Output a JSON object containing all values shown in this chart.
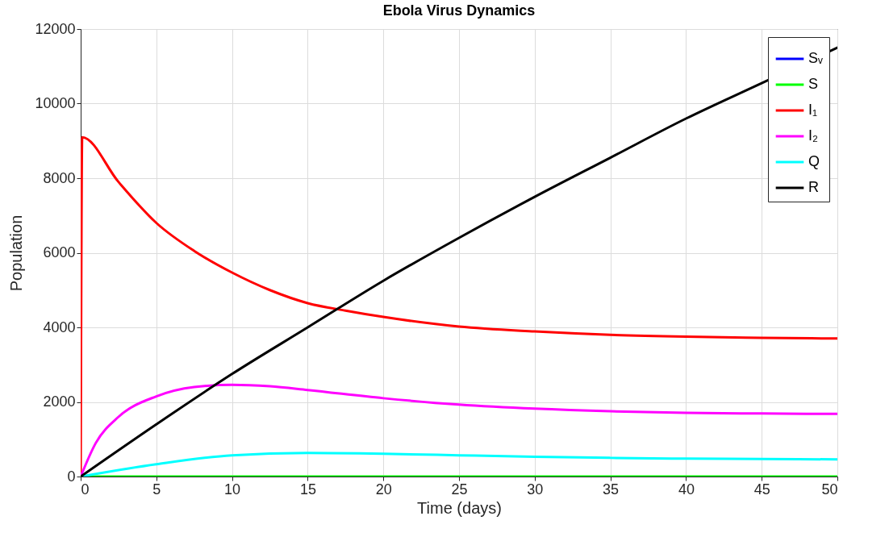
{
  "chart_data": {
    "type": "line",
    "title": "Ebola Virus Dynamics",
    "xlabel": "Time (days)",
    "ylabel": "Population",
    "xlim": [
      0,
      50
    ],
    "xticks": [
      0,
      5,
      10,
      15,
      20,
      25,
      30,
      35,
      40,
      45,
      50
    ],
    "ylim": [
      0,
      12000
    ],
    "yticks": [
      0,
      2000,
      4000,
      6000,
      8000,
      10000,
      12000
    ],
    "grid": true,
    "legend": "top right",
    "line_style": "solid",
    "series": [
      {
        "name": "Sᵥ",
        "color": "#0000ff"
      },
      {
        "name": "S",
        "color": "#00ff00",
        "x": [
          0,
          50
        ],
        "values": [
          0,
          0
        ]
      },
      {
        "name": "I₁",
        "color": "#ff0000",
        "x": [
          0,
          0.1,
          2.5,
          5,
          7.5,
          10,
          12.5,
          15,
          17.5,
          20,
          25,
          30,
          35,
          40,
          45,
          50
        ],
        "values": [
          0,
          9100,
          7900,
          6800,
          6050,
          5470,
          5000,
          4650,
          4450,
          4280,
          4020,
          3890,
          3800,
          3750,
          3720,
          3700
        ]
      },
      {
        "name": "I₂",
        "color": "#ff00ff",
        "x": [
          0,
          1,
          2.5,
          5,
          7.5,
          10,
          12.5,
          15,
          20,
          25,
          30,
          35,
          40,
          45,
          50
        ],
        "values": [
          0,
          900,
          1600,
          2150,
          2400,
          2460,
          2420,
          2320,
          2100,
          1930,
          1820,
          1750,
          1710,
          1690,
          1680
        ]
      },
      {
        "name": "Q",
        "color": "#00ffff",
        "x": [
          0,
          5,
          10,
          15,
          20,
          25,
          30,
          35,
          40,
          45,
          50
        ],
        "values": [
          0,
          330,
          570,
          630,
          610,
          570,
          530,
          500,
          480,
          470,
          460
        ]
      },
      {
        "name": "R",
        "color": "#000000",
        "x": [
          0,
          5,
          10,
          15,
          20,
          25,
          30,
          35,
          40,
          45,
          50
        ],
        "values": [
          0,
          1400,
          2750,
          4000,
          5250,
          6400,
          7500,
          8550,
          9600,
          10550,
          11500
        ]
      }
    ]
  }
}
